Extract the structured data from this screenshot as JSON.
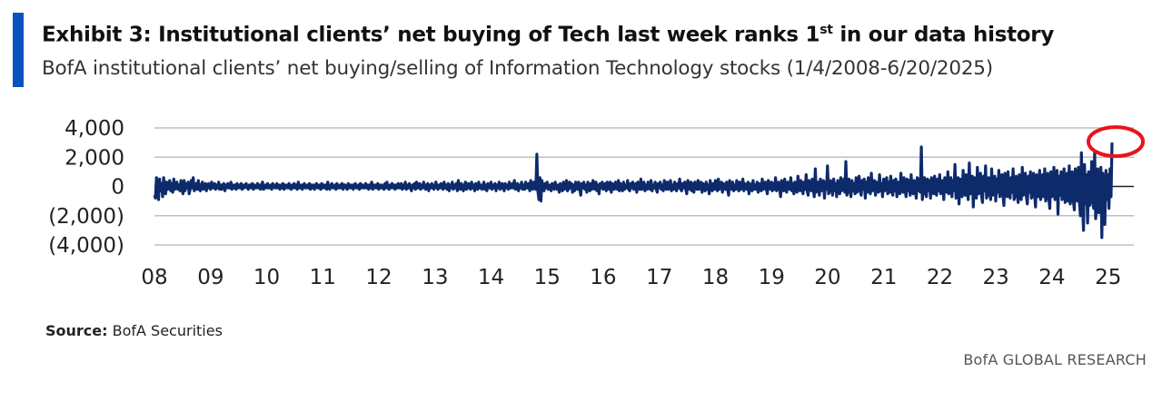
{
  "header": {
    "title_main": "Exhibit 3: Institutional clients’ net buying of Tech last week ranks 1",
    "title_sup": "st",
    "title_end": " in our data history",
    "subtitle": "BofA institutional clients’ net buying/selling of Information Technology stocks (1/4/2008-6/20/2025)"
  },
  "footer": {
    "source_label": "Source:",
    "source_text": " BofA Securities",
    "brand": "BofA GLOBAL RESEARCH"
  },
  "colors": {
    "accent": "#0a53be",
    "series": "#0d2a6b",
    "highlight": "#e8141b",
    "grid": "#bfbfbf",
    "zero_line": "#222222"
  },
  "chart_data": {
    "type": "line",
    "x_start": "2008-01-04",
    "x_frequency": "weekly",
    "x_end": "2025-06-20",
    "ylim": [
      -4000,
      4000
    ],
    "yticks": [
      4000,
      2000,
      0,
      -2000,
      -4000
    ],
    "ytick_labels": [
      "4,000",
      "2,000",
      "0",
      "(2,000)",
      "(4,000)"
    ],
    "xtick_labels": [
      "08",
      "09",
      "10",
      "11",
      "12",
      "13",
      "14",
      "15",
      "16",
      "17",
      "18",
      "19",
      "20",
      "21",
      "22",
      "23",
      "24",
      "25"
    ],
    "grid": "horizontal",
    "legend": "none",
    "annotation": "red circle around latest week",
    "series": [
      {
        "values": [
          -600,
          -800,
          600,
          -200,
          -900,
          500,
          -300,
          200,
          -700,
          600,
          -100,
          -500,
          300,
          -200,
          -100,
          400,
          -300,
          200,
          -400,
          500,
          -200,
          -100,
          300,
          -200,
          100,
          -300,
          400,
          -200,
          -500,
          400,
          -300,
          200,
          -100,
          300,
          -500,
          -200,
          400,
          -100,
          600,
          -300,
          -100,
          200,
          -200,
          400,
          -200,
          -300,
          100,
          300,
          -200,
          -100,
          200,
          -300,
          100,
          200,
          -100,
          -200,
          300,
          -100,
          -100,
          200,
          -200,
          100,
          -100,
          300,
          -200,
          100,
          -200,
          100,
          200,
          -300,
          100,
          -100,
          200,
          -100,
          -100,
          300,
          -200,
          100,
          -100,
          100,
          -200,
          200,
          -100,
          100,
          -100,
          200,
          -200,
          100,
          -100,
          100,
          200,
          -100,
          -200,
          100,
          100,
          -100,
          200,
          -200,
          100,
          -100,
          -100,
          200,
          -100,
          100,
          -200,
          100,
          300,
          -200,
          -100,
          100,
          -100,
          200,
          -100,
          -100,
          100,
          -200,
          200,
          100,
          -100,
          -100,
          200,
          -100,
          100,
          -200,
          100,
          -100,
          200,
          -200,
          100,
          -100,
          100,
          -100,
          200,
          -100,
          -200,
          100,
          -100,
          200,
          -100,
          100,
          -200,
          300,
          -100,
          -100,
          100,
          -200,
          100,
          200,
          -100,
          -100,
          100,
          -100,
          200,
          -200,
          100,
          -100,
          100,
          -200,
          100,
          200,
          -100,
          -100,
          100,
          -200,
          200,
          -100,
          100,
          -100,
          100,
          -200,
          300,
          -100,
          -200,
          100,
          200,
          -100,
          -100,
          100,
          -200,
          200,
          -100,
          -100,
          100,
          -100,
          200,
          -200,
          100,
          100,
          -100,
          -200,
          200,
          -100,
          100,
          -100,
          100,
          -200,
          100,
          200,
          -100,
          -100,
          100,
          -200,
          200,
          -100,
          100,
          -100,
          -100,
          200,
          -100,
          100,
          -200,
          100,
          -100,
          300,
          -200,
          100,
          -100,
          100,
          -100,
          200,
          -200,
          100,
          -100,
          100,
          -100,
          -200,
          200,
          -100,
          300,
          -100,
          -200,
          100,
          -100,
          200,
          -100,
          100,
          -200,
          100,
          -100,
          200,
          -100,
          -100,
          200,
          -200,
          100,
          -100,
          300,
          -200,
          100,
          -100,
          200,
          -100,
          -300,
          100,
          -100,
          200,
          -200,
          300,
          -100,
          -100,
          200,
          -200,
          100,
          -100,
          300,
          -100,
          -200,
          100,
          200,
          -300,
          100,
          -100,
          200,
          -100,
          -200,
          100,
          300,
          -100,
          -200,
          100,
          -100,
          200,
          -100,
          -200,
          300,
          -100,
          100,
          -200,
          200,
          -300,
          100,
          -100,
          300,
          -200,
          100,
          -100,
          200,
          -300,
          400,
          -100,
          -200,
          200,
          -100,
          -300,
          100,
          300,
          -200,
          -100,
          200,
          -100,
          -200,
          300,
          -100,
          100,
          -300,
          200,
          -100,
          -200,
          300,
          -100,
          100,
          -200,
          -100,
          300,
          -200,
          100,
          -300,
          200,
          -100,
          -100,
          300,
          -200,
          100,
          -100,
          200,
          -300,
          100,
          -100,
          300,
          -200,
          -100,
          200,
          -100,
          -300,
          200,
          -100,
          100,
          -200,
          300,
          -100,
          -100,
          200,
          -100,
          400,
          -200,
          -100,
          200,
          -300,
          100,
          -100,
          300,
          -200,
          100,
          -200,
          300,
          -100,
          -100,
          200,
          -300,
          400,
          -100,
          -200,
          300,
          -100,
          -200,
          2200,
          -300,
          -900,
          600,
          -1000,
          400,
          -200,
          -300,
          200,
          -100,
          300,
          -200,
          -100,
          100,
          -300,
          200,
          -100,
          -200,
          300,
          -100,
          -200,
          100,
          -400,
          200,
          -100,
          -300,
          300,
          -200,
          -100,
          400,
          -300,
          -200,
          300,
          -100,
          200,
          -400,
          100,
          -300,
          300,
          -100,
          -200,
          300,
          -200,
          -600,
          200,
          -100,
          300,
          -200,
          100,
          -400,
          300,
          -100,
          -300,
          200,
          -200,
          400,
          -100,
          -200,
          300,
          -300,
          100,
          -500,
          200,
          -100,
          300,
          -200,
          -100,
          200,
          -300,
          300,
          -100,
          -200,
          300,
          -400,
          200,
          -100,
          -200,
          300,
          -100,
          -200,
          400,
          -300,
          200,
          -100,
          -300,
          300,
          -200,
          100,
          -100,
          400,
          -200,
          -300,
          200,
          -100,
          300,
          -200,
          -100,
          200,
          -400,
          300,
          -100,
          -200,
          500,
          -200,
          -100,
          300,
          -300,
          100,
          -200,
          300,
          -100,
          -200,
          400,
          -300,
          100,
          -100,
          300,
          -200,
          -400,
          200,
          -100,
          300,
          -200,
          100,
          -300,
          400,
          -100,
          -200,
          300,
          -200,
          -100,
          400,
          -300,
          100,
          -200,
          300,
          -100,
          -300,
          200,
          -100,
          500,
          -200,
          -300,
          200,
          -100,
          300,
          -200,
          -500,
          400,
          -100,
          -200,
          300,
          -300,
          200,
          -400,
          300,
          -100,
          -200,
          400,
          -200,
          -100,
          300,
          -400,
          200,
          -100,
          -300,
          300,
          -200,
          100,
          -500,
          400,
          -100,
          -300,
          200,
          -200,
          400,
          -100,
          -300,
          500,
          -200,
          -100,
          300,
          -400,
          200,
          -100,
          -200,
          300,
          -200,
          -600,
          400,
          -100,
          -200,
          300,
          -300,
          100,
          -200,
          400,
          -100,
          -300,
          300,
          -200,
          -100,
          500,
          -300,
          200,
          -100,
          -200,
          300,
          -500,
          200,
          -100,
          -300,
          400,
          -200,
          100,
          -200,
          300,
          -400,
          200,
          -100,
          -300,
          500,
          -200,
          -100,
          300,
          -200,
          -500,
          400,
          -100,
          -200,
          300,
          -300,
          200,
          -200,
          600,
          -300,
          -100,
          300,
          -200,
          -700,
          400,
          -100,
          -300,
          500,
          -200,
          -400,
          300,
          -100,
          -200,
          600,
          -300,
          200,
          -500,
          300,
          -100,
          -400,
          700,
          -200,
          -300,
          400,
          -100,
          -500,
          300,
          -200,
          800,
          -300,
          -600,
          400,
          -200,
          -300,
          500,
          -100,
          -700,
          1200,
          -400,
          -200,
          300,
          -600,
          500,
          -300,
          -100,
          400,
          -800,
          300,
          -200,
          1400,
          -500,
          -300,
          400,
          -200,
          -600,
          500,
          -300,
          200,
          -700,
          400,
          -100,
          -500,
          600,
          -300,
          -200,
          500,
          -400,
          1700,
          -600,
          -300,
          500,
          -200,
          -700,
          400,
          -300,
          200,
          -500,
          600,
          -400,
          -200,
          700,
          -300,
          -600,
          400,
          -200,
          500,
          -800,
          300,
          -400,
          600,
          -200,
          -500,
          900,
          -300,
          -200,
          400,
          -600,
          300,
          -200,
          -400,
          800,
          -300,
          200,
          -700,
          500,
          -300,
          -200,
          600,
          -500,
          300,
          -400,
          700,
          -200,
          -600,
          400,
          -300,
          500,
          -700,
          300,
          -200,
          -500,
          900,
          -300,
          -400,
          600,
          -200,
          -700,
          500,
          -300,
          400,
          -600,
          800,
          -300,
          -500,
          400,
          -200,
          -800,
          600,
          -300,
          500,
          -400,
          2700,
          -900,
          -300,
          600,
          -400,
          -700,
          500,
          -300,
          400,
          -800,
          600,
          -200,
          -500,
          700,
          -400,
          -600,
          500,
          -300,
          800,
          -500,
          -300,
          400,
          -900,
          600,
          -300,
          -400,
          1000,
          -500,
          -200,
          600,
          -700,
          400,
          -300,
          1500,
          -800,
          -400,
          600,
          -1200,
          500,
          -300,
          -700,
          1100,
          -400,
          -600,
          800,
          -300,
          -900,
          1600,
          -500,
          -400,
          700,
          -1400,
          600,
          -300,
          -800,
          1300,
          -500,
          -400,
          900,
          -600,
          -1100,
          700,
          -300,
          1400,
          -800,
          -500,
          600,
          -400,
          -900,
          1200,
          -600,
          -300,
          700,
          -1000,
          500,
          -400,
          1100,
          -700,
          -500,
          800,
          -600,
          -1300,
          900,
          -400,
          -700,
          1000,
          -500,
          -800,
          600,
          -400,
          1200,
          -900,
          -500,
          700,
          -600,
          -1100,
          800,
          -400,
          -900,
          1300,
          -600,
          -500,
          900,
          -700,
          -1200,
          700,
          -400,
          1000,
          -800,
          -600,
          900,
          -500,
          -1400,
          800,
          -600,
          -700,
          1100,
          -900,
          -500,
          800,
          -700,
          1200,
          -1000,
          -600,
          900,
          -800,
          -1500,
          1000,
          -700,
          -600,
          1300,
          -900,
          -800,
          1100,
          -1900,
          700,
          -600,
          1000,
          -900,
          -700,
          1200,
          -1100,
          -800,
          900,
          -1000,
          1400,
          -1200,
          -700,
          1000,
          -900,
          -1600,
          1200,
          -800,
          -1000,
          1300,
          -1100,
          -2000,
          2300,
          -900,
          -3000,
          1500,
          -1200,
          800,
          -2500,
          1000,
          -1300,
          -900,
          1700,
          -1100,
          -1500,
          2400,
          -2200,
          -1000,
          1200,
          -1800,
          -900,
          1300,
          -3500,
          900,
          -1200,
          -2600,
          1100,
          -900,
          800,
          -1500,
          1200,
          -700,
          3000
        ]
      }
    ]
  }
}
